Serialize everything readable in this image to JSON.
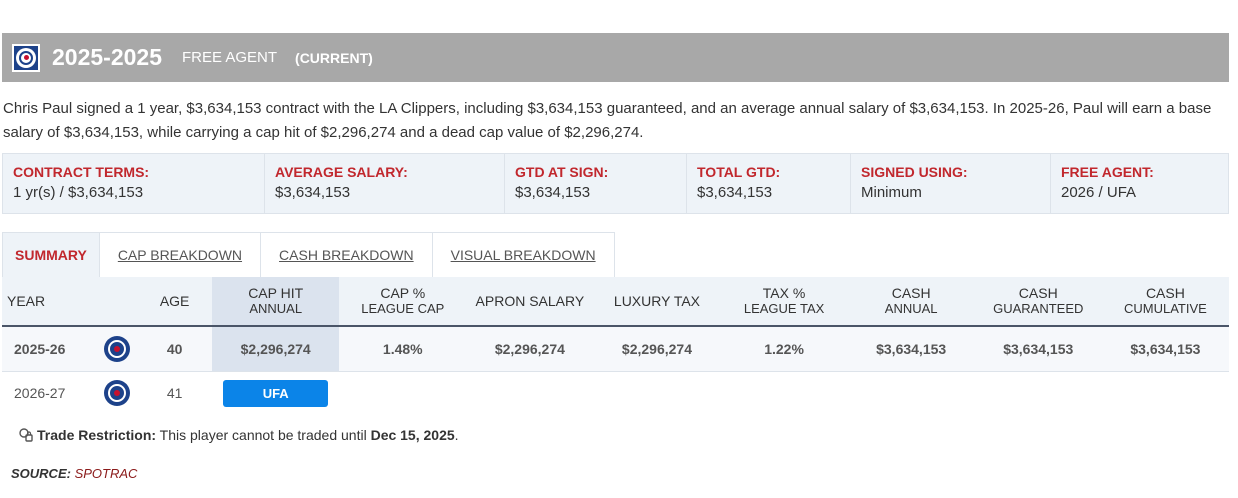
{
  "header": {
    "years": "2025-2025",
    "status": "FREE AGENT",
    "current": "(CURRENT)"
  },
  "summary": "Chris Paul signed a 1 year, $3,634,153 contract with the LA Clippers, including $3,634,153 guaranteed, and an average annual salary of $3,634,153. In 2025-26, Paul will earn a base salary of $3,634,153, while carrying a cap hit of $2,296,274 and a dead cap value of $2,296,274.",
  "terms": [
    {
      "label": "CONTRACT TERMS:",
      "value": "1 yr(s) / $3,634,153"
    },
    {
      "label": "AVERAGE SALARY:",
      "value": "$3,634,153"
    },
    {
      "label": "GTD AT SIGN:",
      "value": "$3,634,153"
    },
    {
      "label": "TOTAL GTD:",
      "value": "$3,634,153"
    },
    {
      "label": "SIGNED USING:",
      "value": "Minimum"
    },
    {
      "label": "FREE AGENT:",
      "value": "2026 / UFA"
    }
  ],
  "tabs": [
    {
      "label": "SUMMARY",
      "active": true
    },
    {
      "label": "CAP BREAKDOWN"
    },
    {
      "label": "CASH BREAKDOWN"
    },
    {
      "label": "VISUAL BREAKDOWN"
    }
  ],
  "table": {
    "headers": {
      "year": "YEAR",
      "age": "AGE",
      "cap_hit": "CAP HIT",
      "cap_hit_sub": "ANNUAL",
      "cap_pct": "CAP %",
      "cap_pct_sub": "LEAGUE CAP",
      "apron": "APRON SALARY",
      "lux": "LUXURY TAX",
      "tax_pct": "TAX %",
      "tax_pct_sub": "LEAGUE TAX",
      "cash": "CASH",
      "cash_sub": "ANNUAL",
      "cash_g": "CASH",
      "cash_g_sub": "GUARANTEED",
      "cash_c": "CASH",
      "cash_c_sub": "CUMULATIVE"
    },
    "rows": [
      {
        "year": "2025-26",
        "age": "40",
        "cap_hit": "$2,296,274",
        "cap_pct": "1.48%",
        "apron": "$2,296,274",
        "lux": "$2,296,274",
        "tax_pct": "1.22%",
        "cash": "$3,634,153",
        "cash_g": "$3,634,153",
        "cash_c": "$3,634,153"
      },
      {
        "year": "2026-27",
        "age": "41",
        "badge": "UFA"
      }
    ]
  },
  "trade": {
    "label": "Trade Restriction:",
    "text": " This player cannot be traded until ",
    "date": "Dec 15, 2025",
    "end": "."
  },
  "source": {
    "label": "SOURCE:",
    "value": "SPOTRAC"
  },
  "colors": {
    "accent_red": "#c1272d",
    "badge_blue": "#0b84e8",
    "header_gray": "#a8a8a8",
    "team_blue": "#1d428a"
  }
}
